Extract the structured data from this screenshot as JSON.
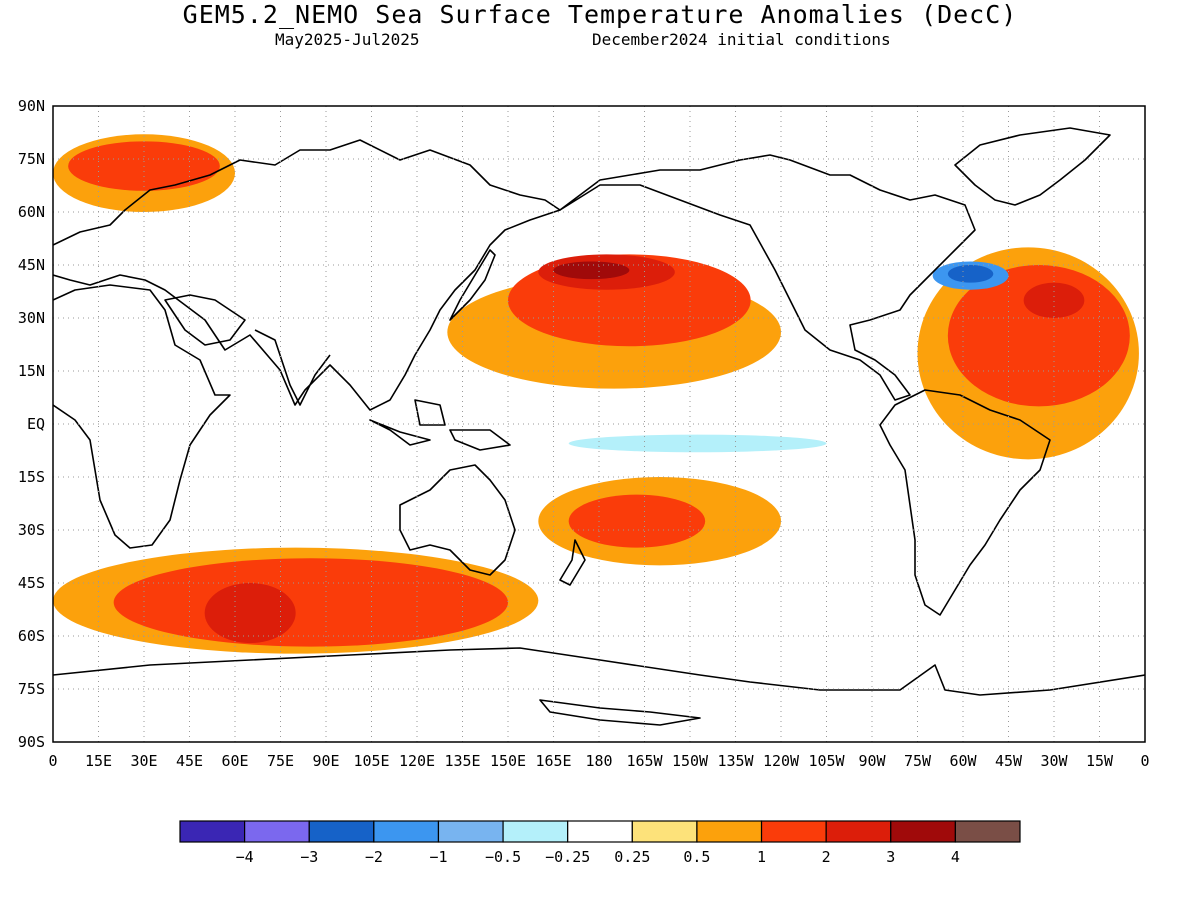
{
  "title": "GEM5.2_NEMO Sea Surface Temperature Anomalies (DecC)",
  "subtitle_period": "May2025-Jul2025",
  "subtitle_init": "December2024 initial conditions",
  "map": {
    "lat_labels": [
      "90N",
      "75N",
      "60N",
      "45N",
      "30N",
      "15N",
      "EQ",
      "15S",
      "30S",
      "45S",
      "60S",
      "75S",
      "90S"
    ],
    "lon_labels": [
      "0",
      "15E",
      "30E",
      "45E",
      "60E",
      "75E",
      "90E",
      "105E",
      "120E",
      "135E",
      "150E",
      "165E",
      "180",
      "165W",
      "150W",
      "135W",
      "120W",
      "105W",
      "90W",
      "75W",
      "60W",
      "45W",
      "30W",
      "15W",
      "0"
    ],
    "gridlines": "dotted"
  },
  "colorbar": {
    "colors": [
      "#3a26b4",
      "#7b68ee",
      "#1662c8",
      "#3c96f0",
      "#78b4f0",
      "#b4f0fa",
      "#ffffff",
      "#fde27a",
      "#fca10c",
      "#fa3c0a",
      "#dc1e0a",
      "#a00a0a",
      "#7a4e46"
    ],
    "tick_labels": [
      "-4",
      "-3",
      "-2",
      "-1",
      "-0.5",
      "-0.25",
      "0.25",
      "0.5",
      "1",
      "2",
      "3",
      "4"
    ]
  },
  "anomaly_regions": [
    {
      "level": "0.5",
      "lat": [
        10,
        42
      ],
      "lon": [
        130,
        240
      ]
    },
    {
      "level": "1",
      "lat": [
        22,
        48
      ],
      "lon": [
        150,
        230
      ]
    },
    {
      "level": "2",
      "lat": [
        38,
        48
      ],
      "lon": [
        160,
        205
      ]
    },
    {
      "level": "3",
      "lat": [
        41,
        46
      ],
      "lon": [
        165,
        190
      ]
    },
    {
      "level": "0.5",
      "lat": [
        -10,
        50
      ],
      "lon": [
        285,
        358
      ]
    },
    {
      "level": "1",
      "lat": [
        5,
        45
      ],
      "lon": [
        295,
        355
      ]
    },
    {
      "level": "2",
      "lat": [
        30,
        40
      ],
      "lon": [
        320,
        340
      ]
    },
    {
      "level": "-1",
      "lat": [
        38,
        46
      ],
      "lon": [
        290,
        315
      ]
    },
    {
      "level": "-2",
      "lat": [
        40,
        45
      ],
      "lon": [
        295,
        310
      ]
    },
    {
      "level": "0.5",
      "lat": [
        -65,
        -35
      ],
      "lon": [
        0,
        160
      ]
    },
    {
      "level": "1",
      "lat": [
        -63,
        -38
      ],
      "lon": [
        20,
        150
      ]
    },
    {
      "level": "2",
      "lat": [
        -62,
        -45
      ],
      "lon": [
        50,
        80
      ]
    },
    {
      "level": "0.5",
      "lat": [
        60,
        82
      ],
      "lon": [
        0,
        60
      ]
    },
    {
      "level": "1",
      "lat": [
        66,
        80
      ],
      "lon": [
        5,
        55
      ]
    },
    {
      "level": "-0.25",
      "lat": [
        -8,
        -3
      ],
      "lon": [
        170,
        255
      ]
    },
    {
      "level": "0.5",
      "lat": [
        -40,
        -15
      ],
      "lon": [
        160,
        240
      ]
    },
    {
      "level": "1",
      "lat": [
        -35,
        -20
      ],
      "lon": [
        170,
        215
      ]
    }
  ]
}
